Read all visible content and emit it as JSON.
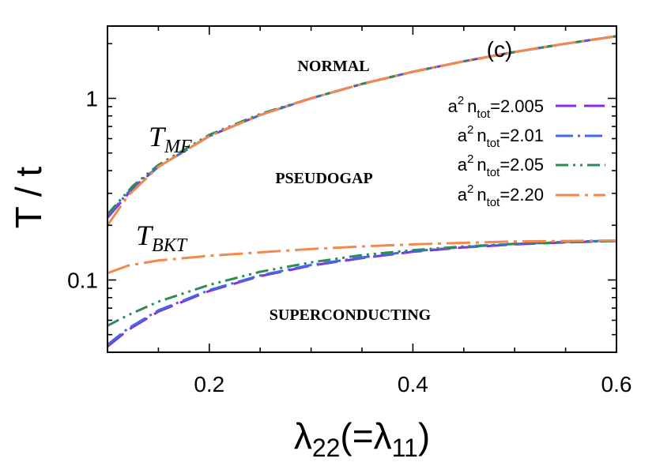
{
  "chart_data": {
    "type": "line",
    "panel_label": "(c)",
    "xlabel": {
      "base": "λ",
      "sub1": "22",
      "mid": "(=λ",
      "sub2": "11",
      "end": ")"
    },
    "ylabel": "T / t",
    "xlim": [
      0.1,
      0.6
    ],
    "ylim": [
      0.04,
      2.5
    ],
    "yscale": "log",
    "xticks": [
      0.2,
      0.4,
      0.6
    ],
    "xtick_labels": [
      "0.2",
      "0.4",
      "0.6"
    ],
    "yticks": [
      0.1,
      1
    ],
    "ytick_labels": [
      "0.1",
      "1"
    ],
    "regions": [
      "NORMAL",
      "PSEUDOGAP",
      "SUPERCONDUCTING"
    ],
    "curve_labels": {
      "mf": {
        "main": "T",
        "sub": "MF"
      },
      "bkt": {
        "main": "T",
        "sub": "BKT"
      }
    },
    "series": [
      {
        "name": "a² n_tot=2.005",
        "legend": {
          "a": "a",
          "sup": "2",
          "n": "n",
          "sub": "tot",
          "value": "=2.005"
        },
        "color": "#8a2be2",
        "dash": "26,10",
        "T_MF": {
          "x": [
            0.1,
            0.125,
            0.15,
            0.2,
            0.25,
            0.3,
            0.35,
            0.4,
            0.45,
            0.5,
            0.55,
            0.6
          ],
          "y": [
            0.22,
            0.32,
            0.42,
            0.62,
            0.81,
            1.0,
            1.2,
            1.4,
            1.6,
            1.8,
            2.0,
            2.2
          ]
        },
        "T_BKT": {
          "x": [
            0.1,
            0.12,
            0.15,
            0.2,
            0.25,
            0.3,
            0.35,
            0.4,
            0.45,
            0.5,
            0.55,
            0.6
          ],
          "y": [
            0.043,
            0.053,
            0.067,
            0.087,
            0.105,
            0.12,
            0.132,
            0.143,
            0.151,
            0.157,
            0.161,
            0.164
          ]
        }
      },
      {
        "name": "a² n_tot=2.01",
        "legend": {
          "a": "a",
          "sup": "2",
          "n": "n",
          "sub": "tot",
          "value": "=2.01"
        },
        "color": "#4169e1",
        "dash": "22,6,3,6",
        "T_MF": {
          "x": [
            0.1,
            0.125,
            0.15,
            0.2,
            0.25,
            0.3,
            0.35,
            0.4,
            0.45,
            0.5,
            0.55,
            0.6
          ],
          "y": [
            0.225,
            0.325,
            0.42,
            0.62,
            0.81,
            1.0,
            1.2,
            1.4,
            1.6,
            1.8,
            2.0,
            2.2
          ]
        },
        "T_BKT": {
          "x": [
            0.1,
            0.12,
            0.15,
            0.2,
            0.25,
            0.3,
            0.35,
            0.4,
            0.45,
            0.5,
            0.55,
            0.6
          ],
          "y": [
            0.044,
            0.054,
            0.068,
            0.088,
            0.106,
            0.121,
            0.133,
            0.144,
            0.152,
            0.158,
            0.162,
            0.165
          ]
        }
      },
      {
        "name": "a² n_tot=2.05",
        "legend": {
          "a": "a",
          "sup": "2",
          "n": "n",
          "sub": "tot",
          "value": "=2.05"
        },
        "color": "#2e8b57",
        "dash": "16,6,3,6,3,6",
        "T_MF": {
          "x": [
            0.1,
            0.125,
            0.15,
            0.2,
            0.25,
            0.3,
            0.35,
            0.4,
            0.45,
            0.5,
            0.55,
            0.6
          ],
          "y": [
            0.23,
            0.33,
            0.43,
            0.63,
            0.82,
            1.0,
            1.2,
            1.4,
            1.6,
            1.8,
            2.0,
            2.2
          ]
        },
        "T_BKT": {
          "x": [
            0.1,
            0.12,
            0.15,
            0.2,
            0.25,
            0.3,
            0.35,
            0.4,
            0.45,
            0.5,
            0.55,
            0.6
          ],
          "y": [
            0.056,
            0.064,
            0.076,
            0.094,
            0.111,
            0.125,
            0.137,
            0.146,
            0.153,
            0.158,
            0.161,
            0.164
          ]
        }
      },
      {
        "name": "a² n_tot=2.20",
        "legend": {
          "a": "a",
          "sup": "2",
          "n": "n",
          "sub": "tot",
          "value": "=2.20"
        },
        "color": "#f4874b",
        "dash": "30,7,4,7",
        "T_MF": {
          "x": [
            0.1,
            0.12,
            0.15,
            0.2,
            0.25,
            0.3,
            0.35,
            0.4,
            0.45,
            0.5,
            0.55,
            0.6
          ],
          "y": [
            0.2,
            0.29,
            0.42,
            0.62,
            0.81,
            1.0,
            1.2,
            1.4,
            1.6,
            1.8,
            2.0,
            2.2
          ]
        },
        "T_BKT": {
          "x": [
            0.1,
            0.12,
            0.15,
            0.2,
            0.25,
            0.3,
            0.35,
            0.4,
            0.45,
            0.5,
            0.55,
            0.6
          ],
          "y": [
            0.109,
            0.12,
            0.128,
            0.136,
            0.142,
            0.148,
            0.153,
            0.157,
            0.16,
            0.163,
            0.164,
            0.165
          ]
        }
      }
    ]
  }
}
